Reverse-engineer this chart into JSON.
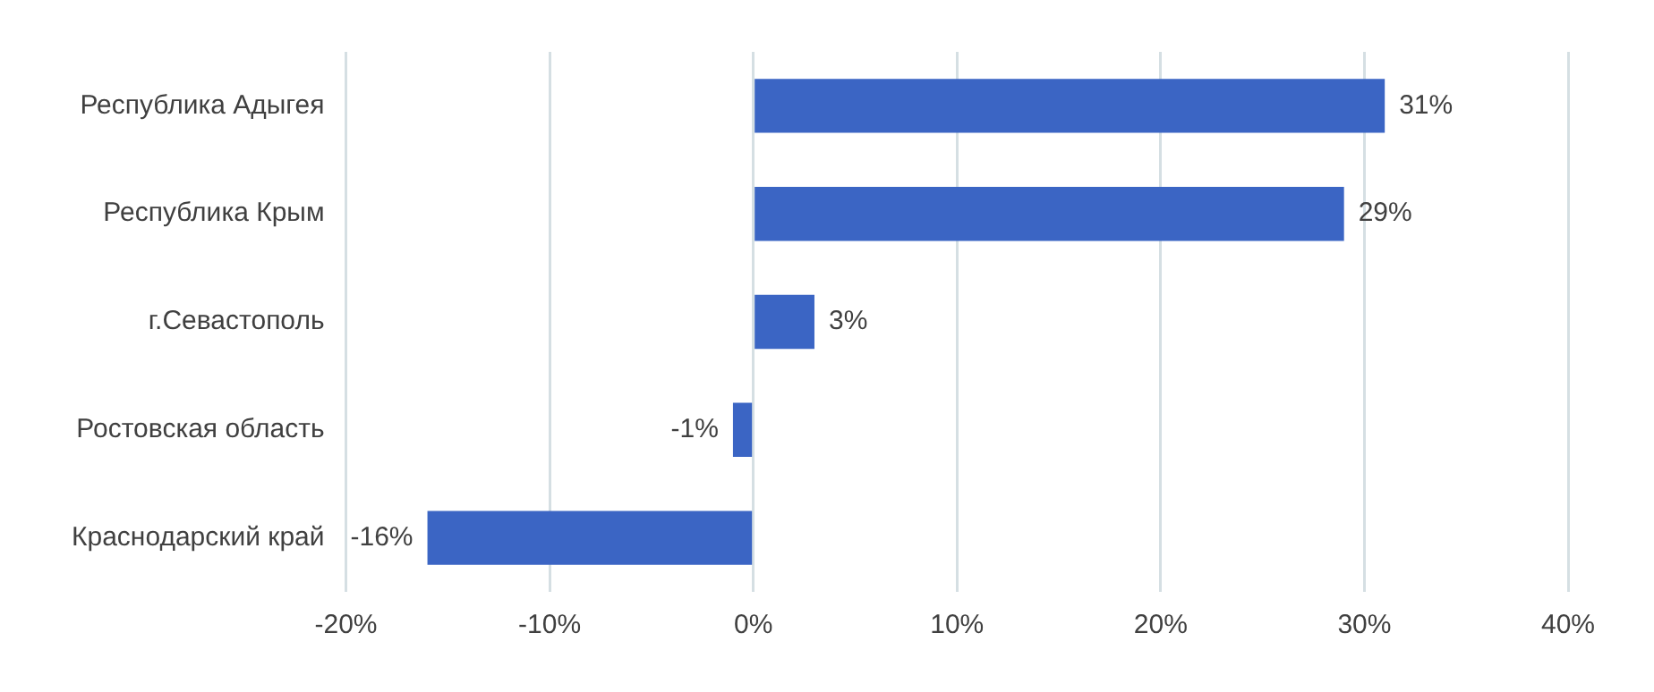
{
  "chart_data": {
    "type": "bar",
    "orientation": "horizontal",
    "categories": [
      "Республика Адыгея",
      "Республика Крым",
      "г.Севастополь",
      "Ростовская область",
      "Краснодарский край"
    ],
    "values": [
      31,
      29,
      3,
      -1,
      -16
    ],
    "value_labels": [
      "31%",
      "29%",
      "3%",
      "-1%",
      "-16%"
    ],
    "color": "#3b65c4",
    "xlim": [
      -20,
      40
    ],
    "xticks": [
      {
        "value": -20,
        "label": "-20%"
      },
      {
        "value": -10,
        "label": "-10%"
      },
      {
        "value": 0,
        "label": "0%"
      },
      {
        "value": 10,
        "label": "10%"
      },
      {
        "value": 20,
        "label": "20%"
      },
      {
        "value": 30,
        "label": "30%"
      },
      {
        "value": 40,
        "label": "40%"
      }
    ],
    "grid": "x"
  }
}
